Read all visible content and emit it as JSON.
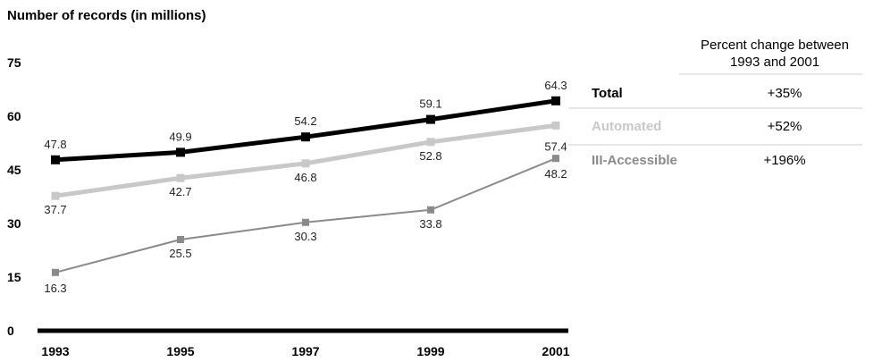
{
  "chart_data": {
    "type": "line",
    "ylabel": "Number of records (in millions)",
    "x": [
      "1993",
      "1995",
      "1997",
      "1999",
      "2001"
    ],
    "yticks": [
      "0",
      "15",
      "30",
      "45",
      "60",
      "75"
    ],
    "ylim": [
      0,
      75
    ],
    "grid": false,
    "series": [
      {
        "name": "Total",
        "values": [
          47.8,
          49.9,
          54.2,
          59.1,
          64.3
        ],
        "labels": [
          "47.8",
          "49.9",
          "54.2",
          "59.1",
          "64.3"
        ],
        "color": "#000000",
        "change": "+35%"
      },
      {
        "name": "Automated",
        "values": [
          37.7,
          42.7,
          46.8,
          52.8,
          57.4
        ],
        "labels": [
          "37.7",
          "42.7",
          "46.8",
          "52.8",
          "57.4"
        ],
        "color": "#c8c8c8",
        "change": "+52%"
      },
      {
        "name": "III-Accessible",
        "values": [
          16.3,
          25.5,
          30.3,
          33.8,
          48.2
        ],
        "labels": [
          "16.3",
          "25.5",
          "30.3",
          "33.8",
          "48.2"
        ],
        "color": "#8a8a8a",
        "change": "+196%"
      }
    ],
    "legend": {
      "placement": "right",
      "heading_line1": "Percent change between",
      "heading_line2": "1993 and 2001"
    }
  }
}
